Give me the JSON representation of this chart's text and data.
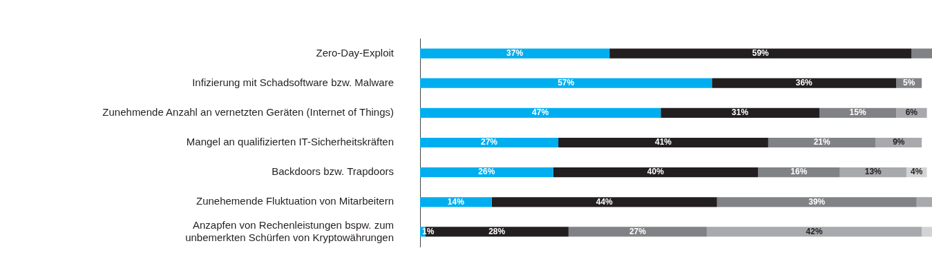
{
  "chart_data": {
    "type": "bar",
    "orientation": "horizontal",
    "stacked": true,
    "categories": [
      "Zero-Day-Exploit",
      "Infizierung mit Schadsoftware bzw. Malware",
      "Zunehmende Anzahl an vernetzten Geräten (Internet of Things)",
      "Mangel an qualifizierten IT-Sicherheitskräften",
      "Backdoors bzw. Trapdoors",
      "Zunehemende Fluktuation von Mitarbeitern",
      "Anzapfen von Rechenleistungen bspw. zum\nunbemerkten Schürfen von Kryptowährungen"
    ],
    "series": [
      {
        "color": "#00aeef",
        "values": [
          37,
          57,
          47,
          27,
          26,
          14,
          1
        ],
        "value_labels": [
          "37%",
          "57%",
          "47%",
          "27%",
          "26%",
          "14%",
          "1%"
        ]
      },
      {
        "color": "#231f20",
        "values": [
          59,
          36,
          31,
          41,
          40,
          44,
          28
        ],
        "value_labels": [
          "59%",
          "36%",
          "31%",
          "41%",
          "40%",
          "44%",
          "28%"
        ]
      },
      {
        "color": "#808285",
        "values": [
          4,
          5,
          15,
          21,
          16,
          39,
          27
        ],
        "value_labels": [
          null,
          "5%",
          "15%",
          "21%",
          "16%",
          "39%",
          "27%"
        ]
      },
      {
        "color": "#a7a9ac",
        "values": [
          null,
          null,
          6,
          9,
          13,
          3,
          42
        ],
        "value_labels": [
          null,
          null,
          "6%",
          "9%",
          "13%",
          null,
          "42%"
        ]
      },
      {
        "color": "#d1d3d4",
        "values": [
          null,
          null,
          null,
          null,
          4,
          null,
          2
        ],
        "value_labels": [
          null,
          null,
          null,
          null,
          "4%",
          null,
          null
        ]
      }
    ],
    "xlim": [
      0,
      100
    ],
    "grid": false,
    "legend": false
  }
}
